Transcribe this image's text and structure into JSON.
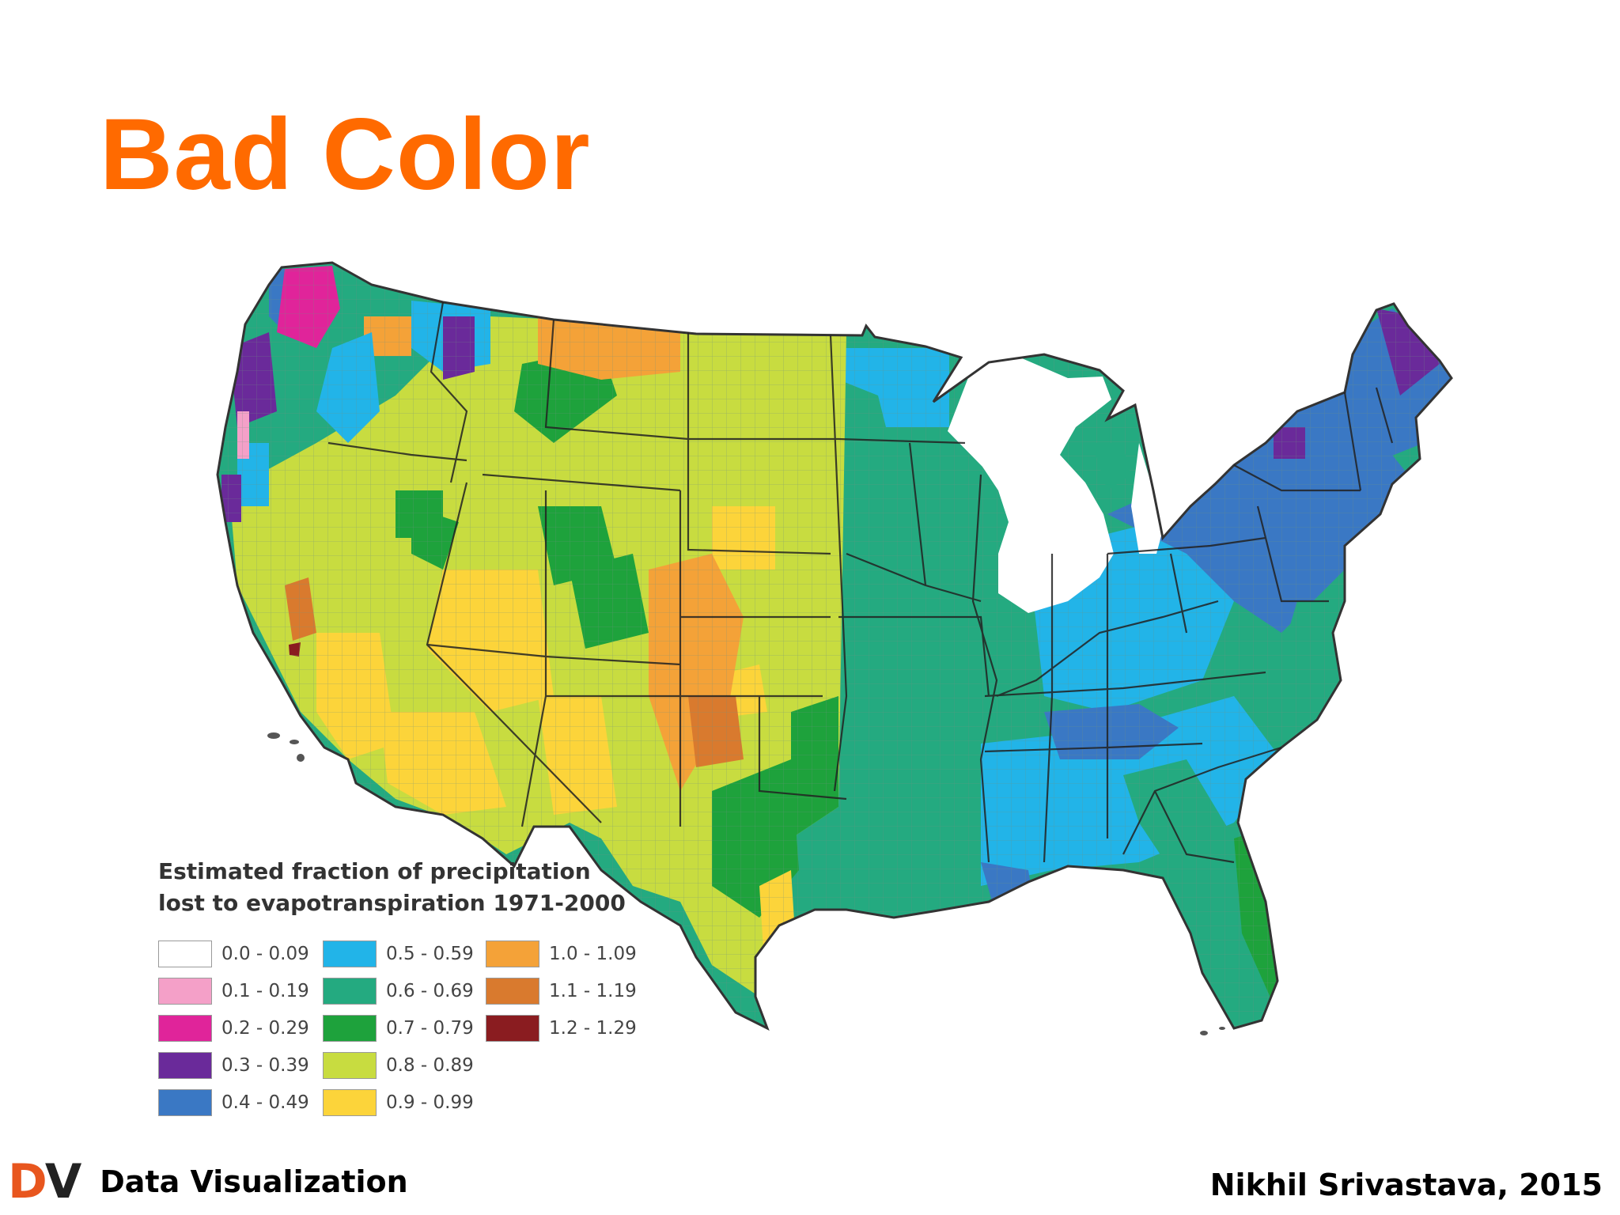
{
  "slide": {
    "title": "Bad Color"
  },
  "map": {
    "region": "Contiguous United States (county-level)",
    "legend": {
      "title_line1": "Estimated fraction of precipitation",
      "title_line2": "lost to evapotranspiration 1971-2000",
      "items": [
        {
          "label": "0.0 - 0.09",
          "color": "#ffffff"
        },
        {
          "label": "0.1 - 0.19",
          "color": "#f4a0c8"
        },
        {
          "label": "0.2 - 0.29",
          "color": "#e0249a"
        },
        {
          "label": "0.3 - 0.39",
          "color": "#6a2a9a"
        },
        {
          "label": "0.4 - 0.49",
          "color": "#3a78c4"
        },
        {
          "label": "0.5 - 0.59",
          "color": "#22b4e8"
        },
        {
          "label": "0.6 - 0.69",
          "color": "#24aa80"
        },
        {
          "label": "0.7 - 0.79",
          "color": "#1ea23c"
        },
        {
          "label": "0.8 - 0.89",
          "color": "#c8dc40"
        },
        {
          "label": "0.9 - 0.99",
          "color": "#fcd43a"
        },
        {
          "label": "1.0 - 1.09",
          "color": "#f4a238"
        },
        {
          "label": "1.1 - 1.19",
          "color": "#d97a2e"
        },
        {
          "label": "1.2 - 1.29",
          "color": "#8a1c20"
        }
      ]
    }
  },
  "footer": {
    "logo_d": "D",
    "logo_v": "V",
    "left_text": "Data Visualization",
    "right_text": "Nikhil Srivastava, 2015"
  },
  "colors": {
    "title": "#ff6a00",
    "logo_d": "#e8561e",
    "water": "#ffffff",
    "border": "#333333"
  }
}
